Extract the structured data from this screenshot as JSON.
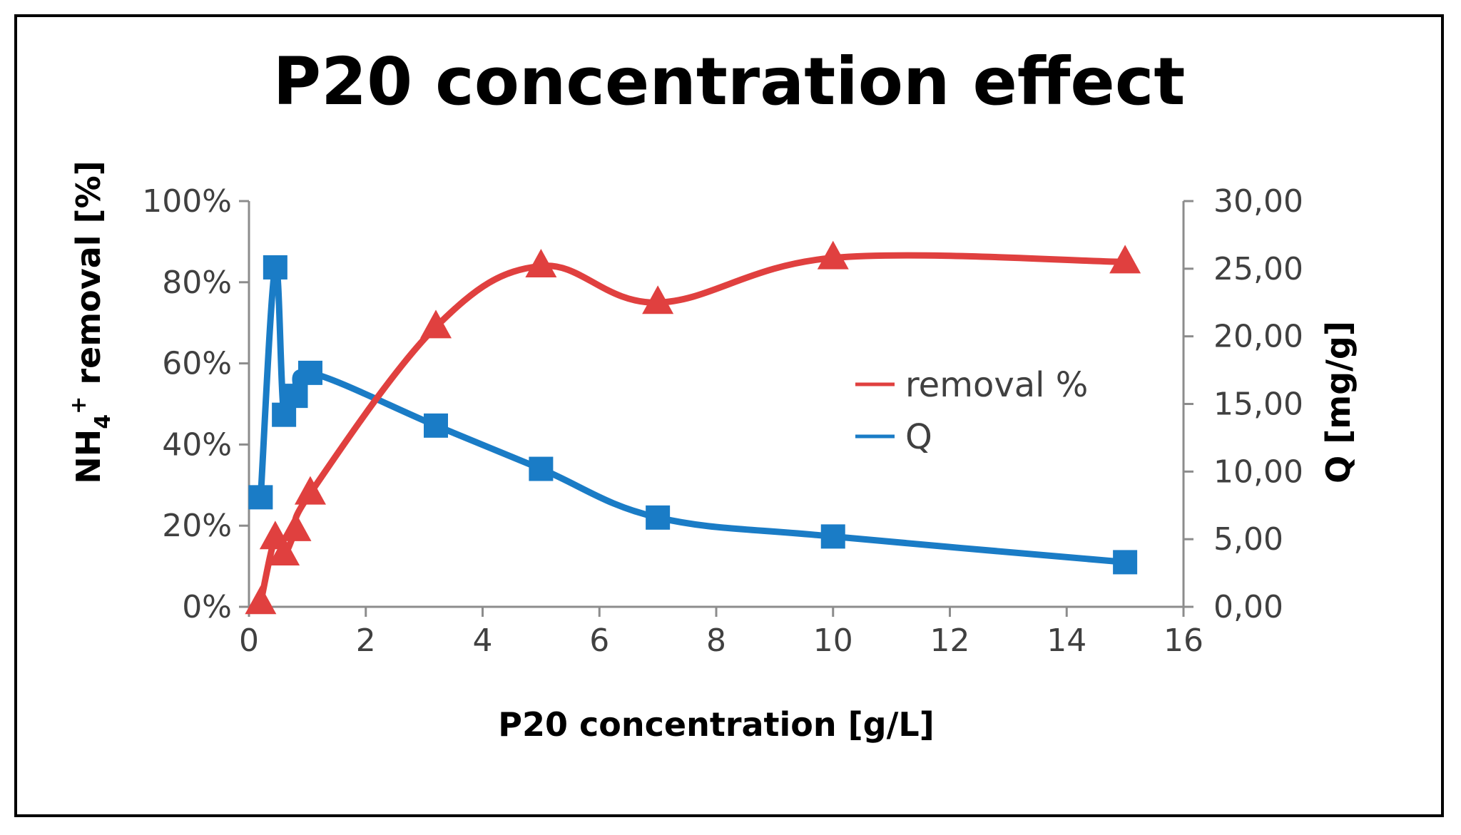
{
  "chart_data": {
    "type": "line",
    "title": "P20 concentration effect",
    "xlabel": "P20 concentration  [g/L]",
    "ylabel_left_main": "NH",
    "ylabel_left_sub": "4",
    "ylabel_left_sup": "+",
    "ylabel_left_rest": " removal  [%]",
    "ylabel_right": "Q [mg/g]",
    "xlim": [
      0,
      16
    ],
    "ylim_left": [
      0,
      100
    ],
    "ylim_right": [
      0,
      30
    ],
    "x_ticks": [
      "0",
      "2",
      "4",
      "6",
      "8",
      "10",
      "12",
      "14",
      "16"
    ],
    "y_left_ticks": [
      "0%",
      "20%",
      "40%",
      "60%",
      "80%",
      "100%"
    ],
    "y_right_ticks": [
      "0,00",
      "5,00",
      "10,00",
      "15,00",
      "20,00",
      "25,00",
      "30,00"
    ],
    "grid": false,
    "legend_position": "center-right",
    "series": [
      {
        "name": "removal %",
        "axis": "left",
        "color": "#e0403f",
        "marker": "triangle",
        "x": [
          0.2,
          0.45,
          0.6,
          0.8,
          1.05,
          3.2,
          5.0,
          7.0,
          10.0,
          15.0
        ],
        "y": [
          1,
          17,
          13,
          19,
          28,
          69,
          84,
          75,
          86,
          85
        ]
      },
      {
        "name": "Q",
        "axis": "right",
        "color": "#1a7cc6",
        "marker": "square",
        "x": [
          0.2,
          0.45,
          0.6,
          0.8,
          1.05,
          3.2,
          5.0,
          7.0,
          10.0,
          15.0
        ],
        "y": [
          8.1,
          25.1,
          14.2,
          15.6,
          17.3,
          13.4,
          10.2,
          6.6,
          5.2,
          3.3
        ]
      }
    ]
  }
}
